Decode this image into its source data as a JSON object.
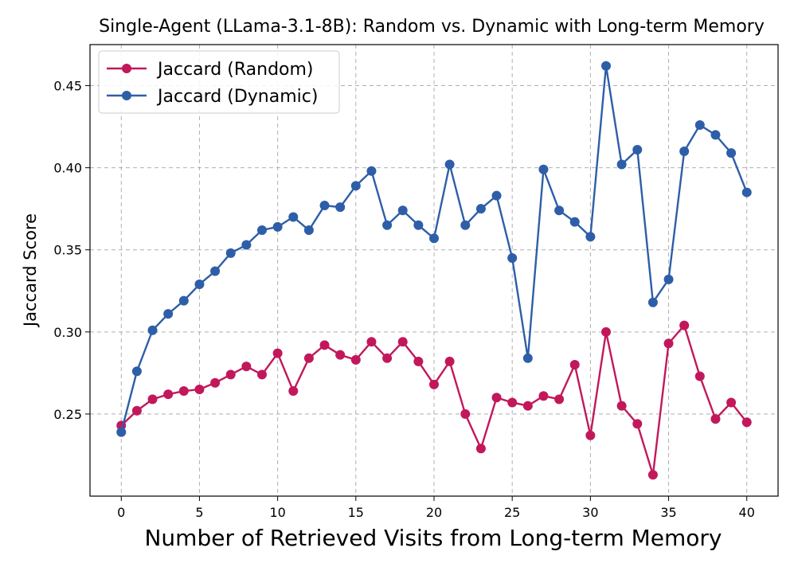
{
  "chart_data": {
    "type": "line",
    "title": "Single-Agent (LLama-3.1-8B): Random vs. Dynamic with Long-term Memory",
    "xlabel": "Number of Retrieved Visits from Long-term Memory",
    "ylabel": "Jaccard Score",
    "xlim": [
      -2,
      42
    ],
    "ylim": [
      0.2,
      0.475
    ],
    "xticks": [
      0,
      5,
      10,
      15,
      20,
      25,
      30,
      35,
      40
    ],
    "yticks": [
      0.25,
      0.3,
      0.35,
      0.4,
      0.45
    ],
    "ytick_labels": [
      "0.25",
      "0.30",
      "0.35",
      "0.40",
      "0.45"
    ],
    "grid": true,
    "legend_position": "top-left",
    "x": [
      0,
      1,
      2,
      3,
      4,
      5,
      6,
      7,
      8,
      9,
      10,
      11,
      12,
      13,
      14,
      15,
      16,
      17,
      18,
      19,
      20,
      21,
      22,
      23,
      24,
      25,
      26,
      27,
      28,
      29,
      30,
      31,
      32,
      33,
      34,
      35,
      36,
      37,
      38,
      39,
      40
    ],
    "series": [
      {
        "name": "Jaccard (Random)",
        "color": "#c2185b",
        "values": [
          0.243,
          0.252,
          0.259,
          0.262,
          0.264,
          0.265,
          0.269,
          0.274,
          0.279,
          0.274,
          0.287,
          0.264,
          0.284,
          0.292,
          0.286,
          0.283,
          0.294,
          0.284,
          0.294,
          0.282,
          0.268,
          0.282,
          0.25,
          0.229,
          0.26,
          0.257,
          0.255,
          0.261,
          0.259,
          0.28,
          0.237,
          0.3,
          0.255,
          0.244,
          0.213,
          0.293,
          0.304,
          0.273,
          0.247,
          0.257,
          0.245
        ]
      },
      {
        "name": "Jaccard (Dynamic)",
        "color": "#2e5ea8",
        "values": [
          0.239,
          0.276,
          0.301,
          0.311,
          0.319,
          0.329,
          0.337,
          0.348,
          0.353,
          0.362,
          0.364,
          0.37,
          0.362,
          0.377,
          0.376,
          0.389,
          0.398,
          0.365,
          0.374,
          0.365,
          0.357,
          0.402,
          0.365,
          0.375,
          0.383,
          0.345,
          0.284,
          0.399,
          0.374,
          0.367,
          0.358,
          0.462,
          0.402,
          0.411,
          0.318,
          0.332,
          0.41,
          0.426,
          0.42,
          0.409,
          0.385
        ]
      }
    ]
  }
}
